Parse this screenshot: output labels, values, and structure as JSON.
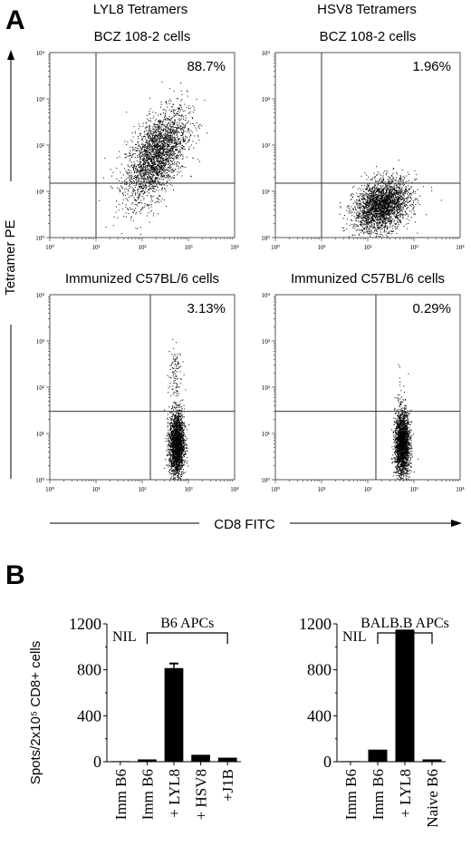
{
  "panel_a": {
    "letter": "A",
    "col_titles": [
      "LYL8 Tetramers",
      "HSV8 Tetramers"
    ],
    "y_axis_title": "Tetramer PE",
    "x_axis_title": "CD8 FITC"
  },
  "panel_b": {
    "letter": "B",
    "y_axis_title": "Spots/2x10⁵ CD8+ cells"
  },
  "chart_data": [
    {
      "type": "scatter",
      "title": "BCZ 108-2 cells",
      "header": "LYL8 Tetramers",
      "percent": "88.7%",
      "xlabel": "CD8 FITC",
      "ylabel": "Tetramer PE",
      "xscale": "log",
      "yscale": "log",
      "xlim": [
        1,
        10000
      ],
      "ylim": [
        1,
        10000
      ],
      "x_ticks": [
        "10⁰",
        "10¹",
        "10²",
        "10³",
        "10⁴"
      ],
      "y_ticks": [
        "10⁰",
        "10¹",
        "10²",
        "10³",
        "10⁴"
      ],
      "gate": {
        "x": 10,
        "y": 15
      },
      "population": {
        "center_x": 200,
        "center_y": 60,
        "spread_x": 0.33,
        "spread_y": 0.5,
        "trend": 0.55,
        "count": 2600
      }
    },
    {
      "type": "scatter",
      "title": "BCZ 108-2 cells",
      "header": "HSV8 Tetramers",
      "percent": "1.96%",
      "xlabel": "CD8 FITC",
      "ylabel": "Tetramer PE",
      "xscale": "log",
      "yscale": "log",
      "xlim": [
        1,
        10000
      ],
      "ylim": [
        1,
        10000
      ],
      "x_ticks": [
        "10⁰",
        "10¹",
        "10²",
        "10³",
        "10⁴"
      ],
      "y_ticks": [
        "10⁰",
        "10¹",
        "10²",
        "10³",
        "10⁴"
      ],
      "gate": {
        "x": 10,
        "y": 15
      },
      "population": {
        "center_x": 200,
        "center_y": 5,
        "spread_x": 0.3,
        "spread_y": 0.28,
        "trend": 0.3,
        "count": 2600
      }
    },
    {
      "type": "scatter",
      "title": "Immunized C57BL/6 cells",
      "percent": "3.13%",
      "xlabel": "CD8 FITC",
      "ylabel": "Tetramer PE",
      "xscale": "log",
      "yscale": "log",
      "xlim": [
        1,
        10000
      ],
      "ylim": [
        1,
        10000
      ],
      "x_ticks": [
        "10⁰",
        "10¹",
        "10²",
        "10³",
        "10⁴"
      ],
      "y_ticks": [
        "10⁰",
        "10¹",
        "10²",
        "10³",
        "10⁴"
      ],
      "gate": {
        "x": 150,
        "y": 30
      },
      "population": {
        "center_x": 550,
        "center_y": 6,
        "spread_x": 0.08,
        "spread_y": 0.35,
        "trend": 0,
        "count": 2200
      },
      "positive_tail": {
        "center_x": 500,
        "center_y": 200,
        "spread_x": 0.07,
        "spread_y": 0.35,
        "count": 110
      }
    },
    {
      "type": "scatter",
      "title": "Immunized C57BL/6 cells",
      "percent": "0.29%",
      "xlabel": "CD8 FITC",
      "ylabel": "Tetramer PE",
      "xscale": "log",
      "yscale": "log",
      "xlim": [
        1,
        10000
      ],
      "ylim": [
        1,
        10000
      ],
      "x_ticks": [
        "10⁰",
        "10¹",
        "10²",
        "10³",
        "10⁴"
      ],
      "y_ticks": [
        "10⁰",
        "10¹",
        "10²",
        "10³",
        "10⁴"
      ],
      "gate": {
        "x": 150,
        "y": 30
      },
      "population": {
        "center_x": 550,
        "center_y": 6,
        "spread_x": 0.08,
        "spread_y": 0.35,
        "trend": 0,
        "count": 2200
      },
      "positive_tail": {
        "center_x": 500,
        "center_y": 60,
        "spread_x": 0.07,
        "spread_y": 0.3,
        "count": 20
      }
    },
    {
      "type": "bar",
      "categories": [
        "Imm B6",
        "Imm B6",
        "+ LYL8",
        "+ HSV8",
        "+J1B"
      ],
      "values": [
        5,
        20,
        815,
        60,
        35
      ],
      "errors": [
        0,
        0,
        40,
        0,
        0
      ],
      "ylim": [
        0,
        1200
      ],
      "y_ticks": [
        0,
        400,
        800,
        1200
      ],
      "bracket_label": "B6 APCs",
      "nil_label": "NIL"
    },
    {
      "type": "bar",
      "categories": [
        "Imm B6",
        "Imm B6",
        "+ LYL8",
        "Naive B6"
      ],
      "values": [
        5,
        105,
        1150,
        20
      ],
      "errors": [
        0,
        0,
        0,
        0
      ],
      "ylim": [
        0,
        1200
      ],
      "y_ticks": [
        0,
        400,
        800,
        1200
      ],
      "bracket_label": "BALB.B APCs",
      "nil_label": "NIL"
    }
  ]
}
